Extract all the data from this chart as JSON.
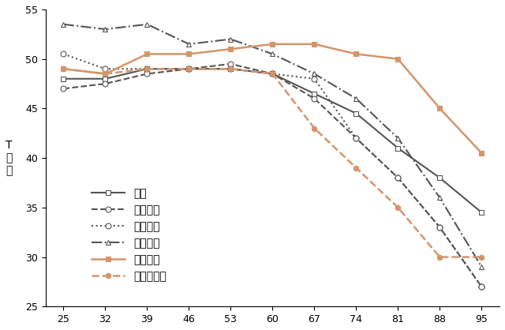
{
  "x": [
    25,
    32,
    39,
    46,
    53,
    60,
    67,
    74,
    81,
    88,
    95
  ],
  "series": {
    "推論": {
      "values": [
        48.0,
        48.0,
        49.0,
        49.0,
        49.0,
        48.5,
        46.5,
        44.5,
        41.0,
        38.0,
        34.5
      ],
      "color": "#555555",
      "linestyle": "-",
      "marker": "s",
      "linewidth": 1.5,
      "markersize": 5
    },
    "空間認知": {
      "values": [
        47.0,
        47.5,
        48.5,
        49.0,
        49.5,
        48.5,
        46.0,
        42.0,
        38.0,
        33.0,
        27.0
      ],
      "color": "#555555",
      "linestyle": "--",
      "marker": "o",
      "linewidth": 1.5,
      "markersize": 5
    },
    "知覚速度": {
      "values": [
        50.5,
        49.0,
        49.0,
        49.0,
        49.0,
        48.5,
        48.0,
        42.0,
        38.0,
        33.0,
        27.0
      ],
      "color": "#555555",
      "linestyle": ":",
      "marker": "o",
      "linewidth": 1.5,
      "markersize": 5
    },
    "数的処理": {
      "values": [
        53.5,
        53.0,
        53.5,
        51.5,
        52.0,
        50.5,
        48.5,
        46.0,
        42.0,
        36.0,
        29.0
      ],
      "color": "#555555",
      "linestyle": "-.",
      "marker": "^",
      "linewidth": 1.5,
      "markersize": 5
    },
    "言語理解": {
      "values": [
        49.0,
        48.5,
        50.5,
        50.5,
        51.0,
        51.5,
        51.5,
        50.5,
        50.0,
        45.0,
        40.5
      ],
      "color": "#d4956a",
      "linestyle": "-",
      "marker": "s",
      "linewidth": 1.8,
      "markersize": 5
    },
    "言語性記憶": {
      "values": [
        49.0,
        48.5,
        49.0,
        49.0,
        49.0,
        48.5,
        43.0,
        39.0,
        35.0,
        30.0,
        30.0
      ],
      "color": "#d4956a",
      "linestyle": "--",
      "marker": "p",
      "linewidth": 1.8,
      "markersize": 5
    }
  },
  "ylim": [
    25,
    55
  ],
  "yticks": [
    25,
    30,
    35,
    40,
    45,
    50,
    55
  ],
  "xticks": [
    25,
    32,
    39,
    46,
    53,
    60,
    67,
    74,
    81,
    88,
    95
  ],
  "ylabel": "T\n得\n点",
  "legend_order": [
    "推論",
    "空間認知",
    "知覚速度",
    "数的処理",
    "言語理解",
    "言語性記憶"
  ],
  "bg_color": "#ffffff",
  "tick_fontsize": 9,
  "label_fontsize": 10,
  "legend_fontsize": 10
}
